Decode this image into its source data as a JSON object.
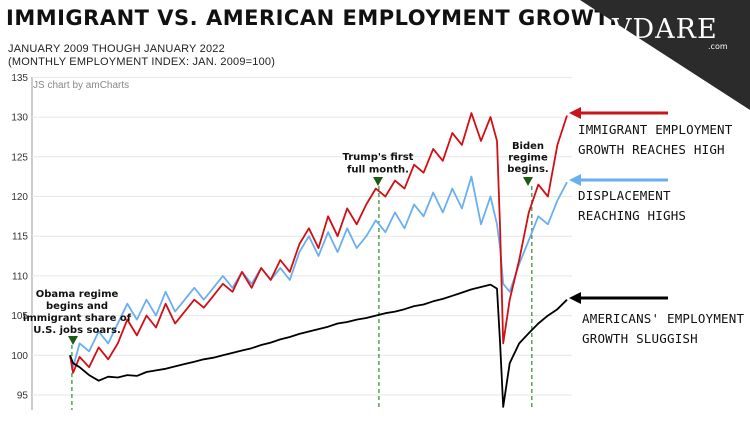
{
  "header": {
    "title": "IMMIGRANT VS. AMERICAN EMPLOYMENT GROWTH",
    "subtitle_1": "JANUARY 2009 THOUGH JANUARY 2022",
    "subtitle_2": "(MONTHLY EMPLOYMENT INDEX: JAN. 2009=100)",
    "credit": "JS chart by amCharts"
  },
  "logo": {
    "text": "VDARE",
    "suffix": ".com"
  },
  "annotations": {
    "immigrant": [
      "IMMIGRANT EMPLOYMENT",
      "GROWTH REACHES HIGH"
    ],
    "displacement": [
      "DISPLACEMENT",
      "REACHING HIGHS"
    ],
    "americans": [
      "AMERICANS' EMPLOYMENT",
      "GROWTH SLUGGISH"
    ]
  },
  "colors": {
    "immigrant": "#d10f14",
    "displacement": "#6aaff0",
    "americans": "#000000",
    "marker": "#1f5a14",
    "arrow_red": "#c8141a",
    "arrow_blue": "#6aaff0",
    "corner": "#2b2b2b"
  },
  "chart_data": {
    "type": "line",
    "title": "Immigrant vs. American Employment Growth",
    "xlabel": "",
    "ylabel": "",
    "xlim": [
      2009.0,
      2022.0
    ],
    "ylim": [
      94,
      135
    ],
    "yticks": [
      95,
      100,
      105,
      110,
      115,
      120,
      125,
      130,
      135
    ],
    "series": [
      {
        "name": "Immigrant employment",
        "x": [
          2009.0,
          2009.08,
          2009.25,
          2009.5,
          2009.75,
          2010.0,
          2010.25,
          2010.5,
          2010.75,
          2011.0,
          2011.25,
          2011.5,
          2011.75,
          2012.0,
          2012.25,
          2012.5,
          2012.75,
          2013.0,
          2013.25,
          2013.5,
          2013.75,
          2014.0,
          2014.25,
          2014.5,
          2014.75,
          2015.0,
          2015.25,
          2015.5,
          2015.75,
          2016.0,
          2016.25,
          2016.5,
          2016.75,
          2017.0,
          2017.25,
          2017.5,
          2017.75,
          2018.0,
          2018.25,
          2018.5,
          2018.75,
          2019.0,
          2019.25,
          2019.5,
          2019.75,
          2020.0,
          2020.17,
          2020.25,
          2020.33,
          2020.5,
          2020.75,
          2021.0,
          2021.25,
          2021.5,
          2021.75,
          2022.0
        ],
        "values": [
          100.0,
          97.8,
          99.8,
          98.5,
          101.0,
          99.5,
          101.5,
          104.5,
          102.5,
          105.0,
          103.5,
          106.5,
          104.0,
          105.5,
          107.0,
          106.0,
          107.5,
          109.0,
          108.0,
          110.5,
          108.5,
          111.0,
          109.5,
          112.0,
          110.5,
          114.0,
          116.0,
          113.5,
          117.5,
          115.0,
          118.5,
          116.5,
          119.0,
          121.0,
          120.0,
          122.0,
          121.0,
          124.0,
          123.0,
          126.0,
          124.5,
          128.0,
          126.5,
          130.5,
          127.0,
          130.0,
          127.0,
          116.0,
          101.5,
          107.0,
          112.0,
          118.0,
          121.5,
          120.0,
          126.5,
          130.2
        ]
      },
      {
        "name": "Displacement",
        "x": [
          2009.0,
          2009.08,
          2009.25,
          2009.5,
          2009.75,
          2010.0,
          2010.25,
          2010.5,
          2010.75,
          2011.0,
          2011.25,
          2011.5,
          2011.75,
          2012.0,
          2012.25,
          2012.5,
          2012.75,
          2013.0,
          2013.25,
          2013.5,
          2013.75,
          2014.0,
          2014.25,
          2014.5,
          2014.75,
          2015.0,
          2015.25,
          2015.5,
          2015.75,
          2016.0,
          2016.25,
          2016.5,
          2016.75,
          2017.0,
          2017.25,
          2017.5,
          2017.75,
          2018.0,
          2018.25,
          2018.5,
          2018.75,
          2019.0,
          2019.25,
          2019.5,
          2019.75,
          2020.0,
          2020.17,
          2020.25,
          2020.33,
          2020.5,
          2020.75,
          2021.0,
          2021.25,
          2021.5,
          2021.75,
          2022.0
        ],
        "values": [
          100.0,
          98.5,
          101.5,
          100.5,
          103.0,
          101.5,
          104.0,
          106.5,
          104.5,
          107.0,
          105.0,
          108.0,
          105.5,
          107.0,
          108.5,
          107.0,
          108.5,
          110.0,
          108.5,
          110.5,
          109.0,
          111.0,
          109.5,
          111.0,
          109.5,
          113.0,
          115.0,
          112.5,
          115.5,
          113.0,
          116.0,
          113.5,
          115.0,
          117.0,
          115.5,
          118.0,
          116.0,
          119.0,
          117.5,
          120.5,
          118.0,
          121.0,
          118.5,
          122.5,
          116.5,
          120.0,
          116.5,
          113.5,
          109.0,
          108.0,
          111.5,
          114.5,
          117.5,
          116.5,
          119.5,
          121.8
        ]
      },
      {
        "name": "Americans' employment",
        "x": [
          2009.0,
          2009.08,
          2009.25,
          2009.5,
          2009.75,
          2010.0,
          2010.25,
          2010.5,
          2010.75,
          2011.0,
          2011.25,
          2011.5,
          2011.75,
          2012.0,
          2012.25,
          2012.5,
          2012.75,
          2013.0,
          2013.25,
          2013.5,
          2013.75,
          2014.0,
          2014.25,
          2014.5,
          2014.75,
          2015.0,
          2015.25,
          2015.5,
          2015.75,
          2016.0,
          2016.25,
          2016.5,
          2016.75,
          2017.0,
          2017.25,
          2017.5,
          2017.75,
          2018.0,
          2018.25,
          2018.5,
          2018.75,
          2019.0,
          2019.25,
          2019.5,
          2019.75,
          2020.0,
          2020.17,
          2020.25,
          2020.33,
          2020.5,
          2020.75,
          2021.0,
          2021.25,
          2021.5,
          2021.75,
          2022.0
        ],
        "values": [
          100.0,
          99.0,
          98.5,
          97.5,
          96.8,
          97.3,
          97.2,
          97.5,
          97.4,
          97.9,
          98.1,
          98.3,
          98.6,
          98.9,
          99.2,
          99.5,
          99.7,
          100.0,
          100.3,
          100.6,
          100.9,
          101.3,
          101.6,
          102.0,
          102.3,
          102.7,
          103.0,
          103.3,
          103.6,
          104.0,
          104.2,
          104.5,
          104.7,
          105.0,
          105.3,
          105.5,
          105.8,
          106.2,
          106.4,
          106.8,
          107.1,
          107.5,
          107.9,
          108.3,
          108.6,
          108.9,
          108.4,
          101.5,
          93.5,
          99.0,
          101.5,
          102.8,
          104.0,
          105.0,
          105.8,
          107.0
        ]
      }
    ],
    "markers": [
      {
        "x": 2009.05,
        "label": "Obama regime begins and immigrant share of U.S. jobs soars."
      },
      {
        "x": 2017.08,
        "label": "Trump's first full month."
      },
      {
        "x": 2021.08,
        "label": "Biden regime begins."
      }
    ]
  }
}
